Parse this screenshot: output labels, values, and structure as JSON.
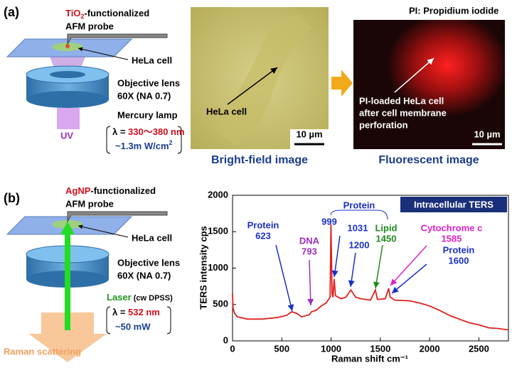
{
  "figure": {
    "panel_a": {
      "label": "(a)",
      "probe_material": "TiO",
      "probe_sub": "2",
      "probe_suffix": "-functionalized",
      "probe": "AFM probe",
      "cell": "HeLa cell",
      "lens": "Objective lens",
      "lens_spec": "60X (NA 0.7)",
      "source": "Mercury lamp",
      "beam": "UV",
      "lambda_prefix": "λ = ",
      "lambda_value": "330〜380 nm",
      "power": "~1.3m W/cm",
      "power_sup": "2"
    },
    "images": {
      "note": "PI: Propidium iodide",
      "bright_label": "HeLa cell",
      "scale": "10 µm",
      "fluor_label": [
        "PI-loaded HeLa cell",
        "after cell membrane",
        "perforation"
      ],
      "bright_caption": "Bright-field image",
      "fluor_caption": "Fluorescent image"
    },
    "panel_b": {
      "label": "(b)",
      "probe_material": "AgNP",
      "probe_suffix": "-functionalized",
      "probe": "AFM probe",
      "cell": "HeLa cell",
      "lens": "Objective lens",
      "lens_spec": "60X (NA 0.7)",
      "source": "Laser",
      "source_spec": " (cw DPSS)",
      "output": "Raman scattering",
      "lambda_prefix": "λ = ",
      "lambda_value": "532 nm",
      "power": "~50 mW"
    }
  },
  "chart_data": {
    "type": "line",
    "title": "Intracellular TERS",
    "x_label": "Raman shift  cm⁻¹",
    "y_label": "TERS intensity  cps",
    "x": [
      0,
      5,
      20,
      50,
      150,
      300,
      450,
      550,
      600,
      650,
      700,
      780,
      800,
      850,
      900,
      950,
      990,
      999,
      1010,
      1020,
      1031,
      1045,
      1100,
      1150,
      1200,
      1250,
      1300,
      1400,
      1450,
      1470,
      1550,
      1585,
      1600,
      1650,
      1800,
      1900,
      2000,
      2100,
      2200,
      2300,
      2400,
      2500,
      2600,
      2700,
      2800
    ],
    "series": [
      {
        "color": "#e0201c",
        "values": [
          650,
          450,
          380,
          330,
          300,
          300,
          320,
          350,
          400,
          380,
          330,
          360,
          400,
          420,
          480,
          520,
          600,
          1600,
          650,
          600,
          850,
          620,
          580,
          600,
          700,
          600,
          580,
          560,
          700,
          570,
          580,
          720,
          600,
          560,
          550,
          520,
          480,
          420,
          350,
          300,
          250,
          220,
          180,
          170,
          150
        ]
      }
    ],
    "xlim": [
      0,
      2800
    ],
    "xticks": [
      0,
      500,
      1000,
      1500,
      2000,
      2500
    ],
    "ylim": [
      0,
      2000
    ],
    "yticks": [
      0,
      500,
      1000,
      1500,
      2000
    ],
    "annotations": [
      {
        "lines": [
          "Protein",
          "623"
        ],
        "color": "#1a2fc8"
      },
      {
        "lines": [
          "DNA",
          "793"
        ],
        "color": "#9b2fc0"
      },
      {
        "lines": [
          "999"
        ],
        "color": "#1a2fc8"
      },
      {
        "lines": [
          "Protein"
        ],
        "color": "#1a2fc8"
      },
      {
        "lines": [
          "1031"
        ],
        "color": "#1a2fc8"
      },
      {
        "lines": [
          "1200"
        ],
        "color": "#1a2fc8"
      },
      {
        "lines": [
          "Lipid",
          "1450"
        ],
        "color": "#1e8a1e"
      },
      {
        "lines": [
          "Cytochrome c",
          "1585"
        ],
        "color": "#e020c8"
      },
      {
        "lines": [
          "Protein",
          "1600"
        ],
        "color": "#1a2fc8"
      }
    ]
  }
}
